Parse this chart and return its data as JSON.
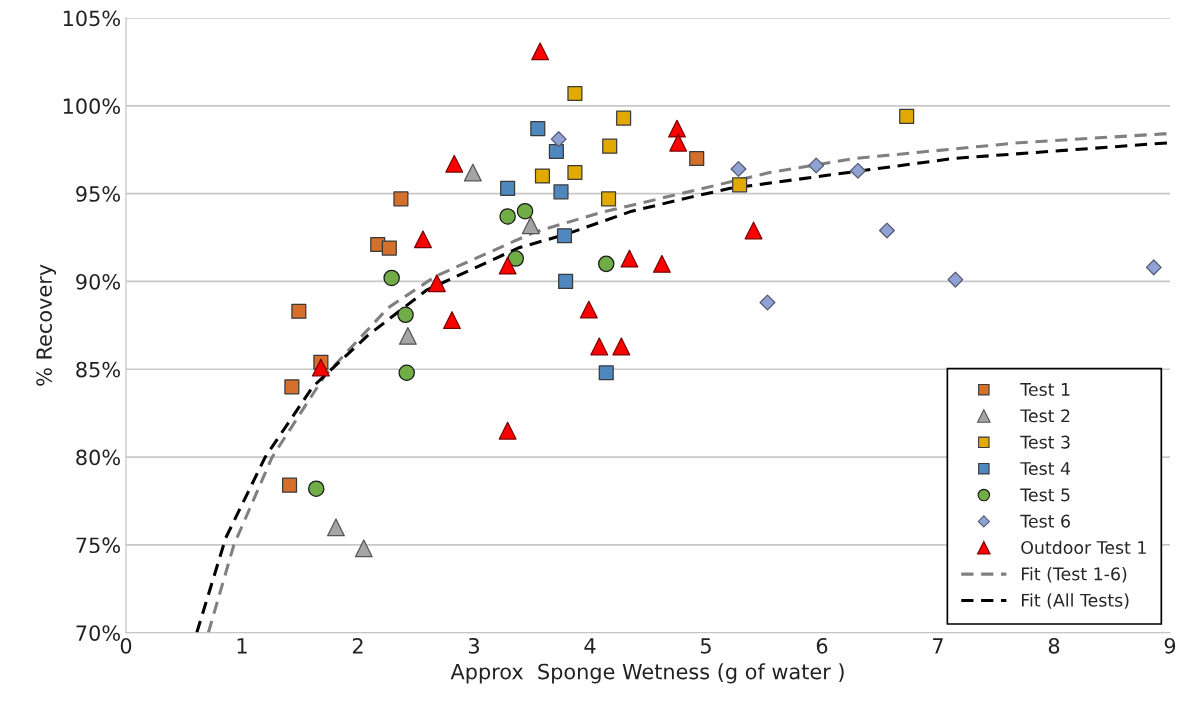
{
  "chart_data": {
    "type": "scatter",
    "xlabel": "Approx  Sponge Wetness (g of water )",
    "ylabel": "% Recovery",
    "xlim": [
      0,
      9
    ],
    "xticks": [
      0,
      1,
      2,
      3,
      4,
      5,
      6,
      7,
      8,
      9
    ],
    "ylim": [
      70,
      105
    ],
    "yticks": [
      {
        "value": 70,
        "label": "70%"
      },
      {
        "value": 75,
        "label": "75%"
      },
      {
        "value": 80,
        "label": "80%"
      },
      {
        "value": 85,
        "label": "85%"
      },
      {
        "value": 90,
        "label": "90%"
      },
      {
        "value": 95,
        "label": "95%"
      },
      {
        "value": 100,
        "label": "100%"
      },
      {
        "value": 105,
        "label": "105%"
      }
    ],
    "grid": "y",
    "legend": "bottom right",
    "series": [
      {
        "name": "Test 1",
        "marker": "square",
        "color": "#d46f2c",
        "x": [
          1.49,
          1.68,
          1.43,
          1.41,
          2.17,
          2.27,
          2.37,
          4.92
        ],
        "values": [
          88.3,
          85.4,
          84.0,
          78.4,
          92.1,
          91.9,
          94.7,
          97.0
        ]
      },
      {
        "name": "Test 2",
        "marker": "triangle",
        "color": "#a5a5a5",
        "x": [
          2.99,
          2.43,
          1.81,
          2.05,
          3.49
        ],
        "values": [
          96.2,
          86.9,
          76.0,
          74.8,
          93.2
        ]
      },
      {
        "name": "Test 3",
        "marker": "square",
        "color": "#e2aa00",
        "x": [
          3.87,
          4.29,
          4.17,
          3.59,
          3.87,
          4.16,
          5.29,
          6.73
        ],
        "values": [
          100.7,
          99.3,
          97.7,
          96.0,
          96.2,
          94.7,
          95.5,
          99.4
        ]
      },
      {
        "name": "Test 4",
        "marker": "square",
        "color": "#4f87bf",
        "x": [
          3.55,
          3.71,
          3.29,
          3.75,
          3.78,
          3.79,
          4.14
        ],
        "values": [
          98.7,
          97.4,
          95.3,
          95.1,
          92.6,
          90.0,
          84.8
        ]
      },
      {
        "name": "Test 5",
        "marker": "circle",
        "color": "#70ad47",
        "x": [
          2.29,
          2.41,
          2.42,
          1.64,
          3.29,
          3.44,
          3.36,
          4.14
        ],
        "values": [
          90.2,
          88.1,
          84.8,
          78.2,
          93.7,
          94.0,
          91.3,
          91.0
        ]
      },
      {
        "name": "Test 6",
        "marker": "diamond",
        "color": "#8fa2d4",
        "x": [
          3.73,
          5.28,
          5.95,
          6.31,
          6.56,
          5.53,
          7.15,
          8.86
        ],
        "values": [
          98.1,
          96.4,
          96.6,
          96.3,
          92.9,
          88.8,
          90.1,
          90.8
        ]
      },
      {
        "name": "Outdoor Test 1",
        "marker": "triangle",
        "color": "#ff0000",
        "x": [
          3.57,
          4.75,
          4.76,
          2.83,
          2.56,
          2.68,
          2.81,
          1.68,
          3.29,
          3.29,
          5.41,
          4.34,
          4.62,
          3.99,
          4.08,
          4.27
        ],
        "values": [
          103.1,
          98.7,
          97.9,
          96.7,
          92.4,
          89.9,
          87.8,
          85.1,
          81.5,
          90.9,
          92.9,
          91.3,
          91.0,
          88.4,
          86.3,
          86.3
        ]
      },
      {
        "name": "Fit (Test 1-6)",
        "type": "line",
        "marker": "none",
        "line_style": "dashed",
        "color": "#808080",
        "x": [
          0.71,
          0.93,
          1.26,
          1.71,
          2.26,
          2.67,
          3.52,
          4.08,
          5.55,
          6.28,
          7.7,
          8.94,
          9.0
        ],
        "values": [
          70,
          75.0,
          80.0,
          84.6,
          88.5,
          90.3,
          92.8,
          93.9,
          96.2,
          97.0,
          97.9,
          98.4,
          98.4
        ]
      },
      {
        "name": "Fit (All Tests)",
        "type": "line",
        "marker": "none",
        "line_style": "dashed",
        "color": "#000000",
        "x": [
          0.61,
          0.86,
          1.2,
          1.61,
          2.08,
          2.59,
          3.38,
          3.8,
          4.36,
          4.87,
          5.21,
          6.0,
          7.13,
          9.0
        ],
        "values": [
          70,
          75.4,
          80.0,
          84.0,
          86.9,
          89.5,
          91.9,
          92.7,
          94.0,
          94.8,
          95.3,
          96.0,
          97.0,
          97.9
        ]
      }
    ]
  }
}
